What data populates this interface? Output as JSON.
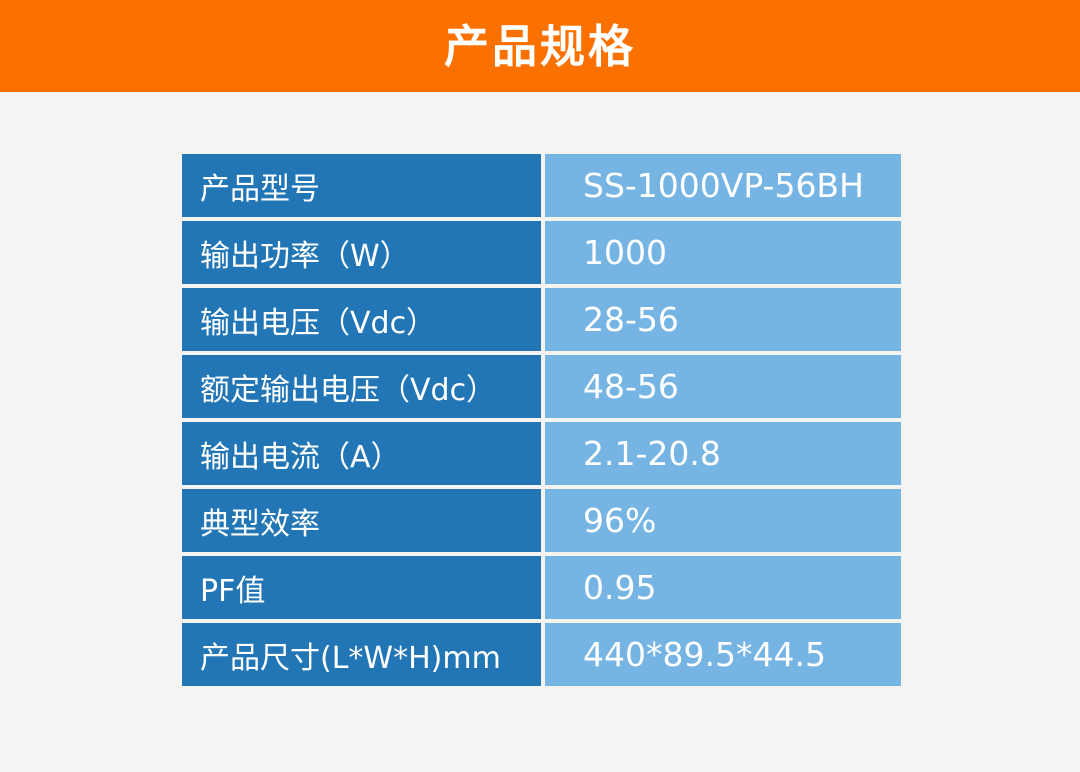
{
  "banner": {
    "title": "产品规格",
    "bg_color": "#fb7100",
    "text_color": "#ffffff"
  },
  "table": {
    "colors": {
      "label_cell_bg": "#2276b5",
      "value_cell_bg": "#76b5e3",
      "cell_text": "#ffffff",
      "gap": "#ffffff",
      "page_bg": "#f5f4f2"
    },
    "rows": [
      {
        "label": "产品型号",
        "value": "SS-1000VP-56BH"
      },
      {
        "label": "输出功率（W）",
        "value": "1000"
      },
      {
        "label": "输出电压（Vdc）",
        "value": "28-56"
      },
      {
        "label": "额定输出电压（Vdc）",
        "value": "48-56"
      },
      {
        "label": "输出电流（A）",
        "value": "2.1-20.8"
      },
      {
        "label": "典型效率",
        "value": "96%"
      },
      {
        "label": "PF值",
        "value": "0.95"
      },
      {
        "label": "产品尺寸(L*W*H)mm",
        "value": "440*89.5*44.5"
      }
    ]
  }
}
